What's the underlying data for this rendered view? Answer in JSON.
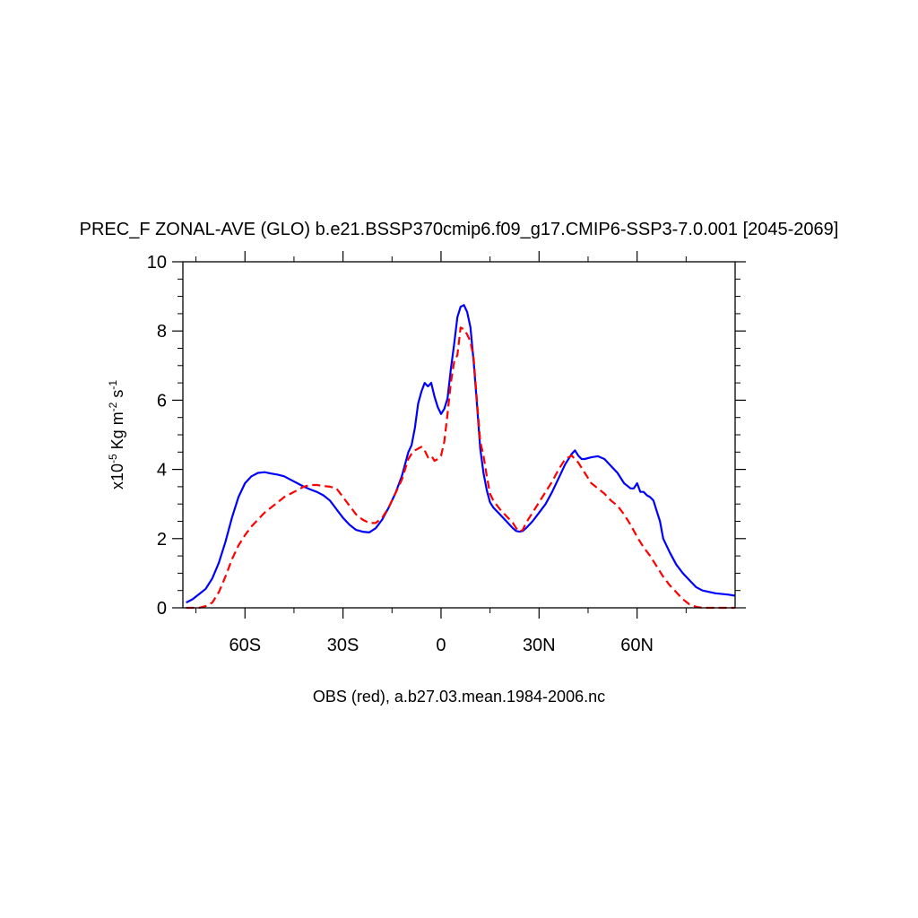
{
  "chart_data": {
    "type": "line",
    "title": "PREC_F ZONAL-AVE (GLO) b.e21.BSSP370cmip6.f09_g17.CMIP6-SSP3-7.0.001 [2045-2069]",
    "xlabel": "OBS (red), a.b27.03.mean.1984-2006.nc",
    "ylabel": {
      "prefix": "x10",
      "exp1": "-5",
      "mid1": " Kg m",
      "exp2": "-2",
      "mid2": " s",
      "exp3": "-1"
    },
    "xlim": [
      -79,
      90
    ],
    "ylim": [
      0,
      10
    ],
    "x_ticks": [
      {
        "value": -60,
        "label": "60S"
      },
      {
        "value": -30,
        "label": "30S"
      },
      {
        "value": 0,
        "label": "0"
      },
      {
        "value": 30,
        "label": "30N"
      },
      {
        "value": 60,
        "label": "60N"
      }
    ],
    "y_ticks": [
      {
        "value": 0,
        "label": "0"
      },
      {
        "value": 2,
        "label": "2"
      },
      {
        "value": 4,
        "label": "4"
      },
      {
        "value": 6,
        "label": "6"
      },
      {
        "value": 8,
        "label": "8"
      },
      {
        "value": 10,
        "label": "10"
      }
    ],
    "grid": false,
    "legend": "none",
    "series": [
      {
        "color": "#0000ff",
        "style": "solid",
        "points": [
          [
            -78,
            0.15
          ],
          [
            -76,
            0.25
          ],
          [
            -74,
            0.4
          ],
          [
            -72,
            0.55
          ],
          [
            -70,
            0.85
          ],
          [
            -68,
            1.3
          ],
          [
            -66,
            1.9
          ],
          [
            -64,
            2.6
          ],
          [
            -62,
            3.2
          ],
          [
            -60,
            3.6
          ],
          [
            -58,
            3.8
          ],
          [
            -56,
            3.9
          ],
          [
            -54,
            3.92
          ],
          [
            -52,
            3.88
          ],
          [
            -50,
            3.85
          ],
          [
            -48,
            3.8
          ],
          [
            -46,
            3.7
          ],
          [
            -44,
            3.6
          ],
          [
            -42,
            3.5
          ],
          [
            -40,
            3.42
          ],
          [
            -38,
            3.35
          ],
          [
            -36,
            3.25
          ],
          [
            -34,
            3.1
          ],
          [
            -32,
            2.85
          ],
          [
            -30,
            2.6
          ],
          [
            -28,
            2.4
          ],
          [
            -26,
            2.25
          ],
          [
            -24,
            2.2
          ],
          [
            -22,
            2.18
          ],
          [
            -20,
            2.3
          ],
          [
            -18,
            2.55
          ],
          [
            -16,
            2.9
          ],
          [
            -14,
            3.3
          ],
          [
            -12,
            3.8
          ],
          [
            -10,
            4.5
          ],
          [
            -9,
            4.7
          ],
          [
            -8,
            5.2
          ],
          [
            -7,
            5.9
          ],
          [
            -6,
            6.25
          ],
          [
            -5,
            6.5
          ],
          [
            -4,
            6.4
          ],
          [
            -3,
            6.5
          ],
          [
            -2,
            6.1
          ],
          [
            -1,
            5.8
          ],
          [
            0,
            5.6
          ],
          [
            1,
            5.75
          ],
          [
            2,
            6.05
          ],
          [
            3,
            6.9
          ],
          [
            4,
            7.6
          ],
          [
            5,
            8.4
          ],
          [
            6,
            8.7
          ],
          [
            7,
            8.75
          ],
          [
            8,
            8.55
          ],
          [
            9,
            8.1
          ],
          [
            10,
            7.1
          ],
          [
            11,
            5.9
          ],
          [
            12,
            4.6
          ],
          [
            13,
            3.9
          ],
          [
            14,
            3.4
          ],
          [
            15,
            3.05
          ],
          [
            16,
            2.9
          ],
          [
            18,
            2.7
          ],
          [
            20,
            2.5
          ],
          [
            22,
            2.3
          ],
          [
            23,
            2.22
          ],
          [
            24,
            2.2
          ],
          [
            25,
            2.22
          ],
          [
            26,
            2.3
          ],
          [
            28,
            2.5
          ],
          [
            30,
            2.75
          ],
          [
            32,
            3.0
          ],
          [
            34,
            3.35
          ],
          [
            36,
            3.75
          ],
          [
            38,
            4.15
          ],
          [
            40,
            4.45
          ],
          [
            41,
            4.55
          ],
          [
            42,
            4.4
          ],
          [
            43,
            4.3
          ],
          [
            44,
            4.3
          ],
          [
            46,
            4.35
          ],
          [
            48,
            4.38
          ],
          [
            50,
            4.3
          ],
          [
            52,
            4.1
          ],
          [
            54,
            3.9
          ],
          [
            56,
            3.6
          ],
          [
            58,
            3.45
          ],
          [
            59,
            3.45
          ],
          [
            60,
            3.6
          ],
          [
            61,
            3.35
          ],
          [
            62,
            3.35
          ],
          [
            63,
            3.25
          ],
          [
            64,
            3.2
          ],
          [
            65,
            3.1
          ],
          [
            66,
            2.8
          ],
          [
            67,
            2.5
          ],
          [
            68,
            2.0
          ],
          [
            70,
            1.6
          ],
          [
            72,
            1.25
          ],
          [
            74,
            1.0
          ],
          [
            76,
            0.8
          ],
          [
            78,
            0.6
          ],
          [
            80,
            0.5
          ],
          [
            84,
            0.42
          ],
          [
            88,
            0.38
          ],
          [
            90,
            0.35
          ]
        ]
      },
      {
        "color": "#ff0000",
        "style": "dashed",
        "points": [
          [
            -78,
            0.0
          ],
          [
            -74,
            0.0
          ],
          [
            -72,
            0.05
          ],
          [
            -70,
            0.15
          ],
          [
            -68,
            0.45
          ],
          [
            -66,
            0.9
          ],
          [
            -64,
            1.4
          ],
          [
            -62,
            1.8
          ],
          [
            -60,
            2.1
          ],
          [
            -58,
            2.35
          ],
          [
            -56,
            2.55
          ],
          [
            -54,
            2.75
          ],
          [
            -52,
            2.9
          ],
          [
            -50,
            3.05
          ],
          [
            -48,
            3.2
          ],
          [
            -46,
            3.3
          ],
          [
            -44,
            3.4
          ],
          [
            -42,
            3.5
          ],
          [
            -40,
            3.55
          ],
          [
            -38,
            3.55
          ],
          [
            -36,
            3.52
          ],
          [
            -34,
            3.5
          ],
          [
            -32,
            3.45
          ],
          [
            -30,
            3.2
          ],
          [
            -28,
            2.95
          ],
          [
            -26,
            2.7
          ],
          [
            -24,
            2.55
          ],
          [
            -22,
            2.45
          ],
          [
            -20,
            2.45
          ],
          [
            -18,
            2.6
          ],
          [
            -16,
            2.9
          ],
          [
            -14,
            3.3
          ],
          [
            -12,
            3.7
          ],
          [
            -10,
            4.3
          ],
          [
            -9,
            4.45
          ],
          [
            -8,
            4.55
          ],
          [
            -7,
            4.6
          ],
          [
            -6,
            4.65
          ],
          [
            -5,
            4.55
          ],
          [
            -4,
            4.35
          ],
          [
            -3,
            4.4
          ],
          [
            -2,
            4.25
          ],
          [
            -1,
            4.3
          ],
          [
            0,
            4.4
          ],
          [
            1,
            4.8
          ],
          [
            2,
            5.6
          ],
          [
            3,
            6.5
          ],
          [
            4,
            7.1
          ],
          [
            5,
            7.3
          ],
          [
            6,
            8.1
          ],
          [
            7,
            8.05
          ],
          [
            8,
            7.9
          ],
          [
            9,
            7.7
          ],
          [
            10,
            7.2
          ],
          [
            11,
            6.0
          ],
          [
            12,
            4.8
          ],
          [
            13,
            4.4
          ],
          [
            14,
            3.8
          ],
          [
            15,
            3.3
          ],
          [
            16,
            3.1
          ],
          [
            18,
            2.85
          ],
          [
            20,
            2.65
          ],
          [
            22,
            2.45
          ],
          [
            23,
            2.3
          ],
          [
            24,
            2.2
          ],
          [
            25,
            2.25
          ],
          [
            26,
            2.45
          ],
          [
            28,
            2.75
          ],
          [
            30,
            3.05
          ],
          [
            32,
            3.35
          ],
          [
            34,
            3.65
          ],
          [
            36,
            4.0
          ],
          [
            38,
            4.3
          ],
          [
            40,
            4.4
          ],
          [
            42,
            4.2
          ],
          [
            44,
            3.9
          ],
          [
            46,
            3.6
          ],
          [
            48,
            3.45
          ],
          [
            50,
            3.3
          ],
          [
            52,
            3.1
          ],
          [
            54,
            2.95
          ],
          [
            56,
            2.7
          ],
          [
            58,
            2.4
          ],
          [
            60,
            2.05
          ],
          [
            62,
            1.75
          ],
          [
            64,
            1.5
          ],
          [
            66,
            1.2
          ],
          [
            68,
            0.9
          ],
          [
            70,
            0.65
          ],
          [
            72,
            0.45
          ],
          [
            74,
            0.25
          ],
          [
            76,
            0.1
          ],
          [
            78,
            0.03
          ],
          [
            80,
            0.0
          ],
          [
            90,
            0.0
          ]
        ]
      }
    ]
  }
}
